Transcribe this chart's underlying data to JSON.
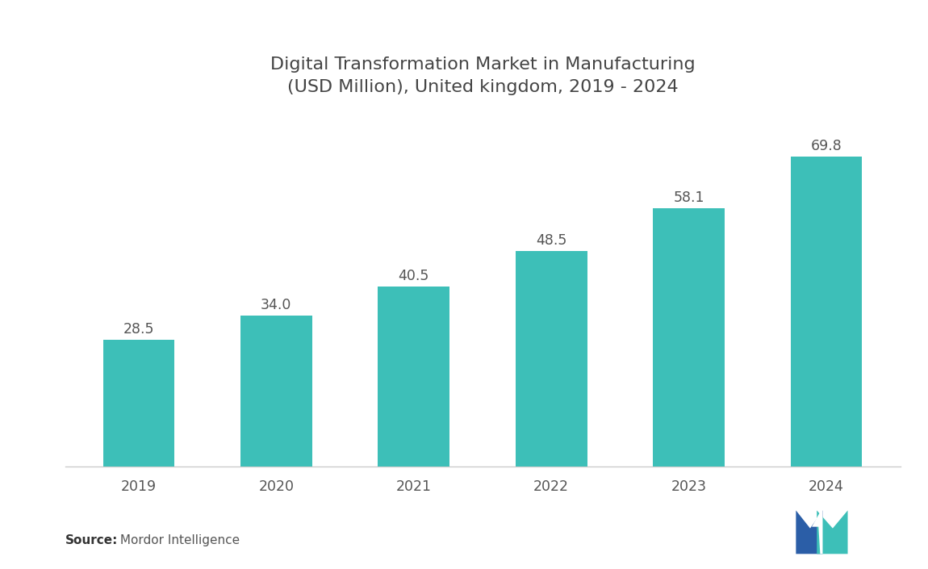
{
  "title": "Digital Transformation Market in Manufacturing\n(USD Million), United kingdom, 2019 - 2024",
  "categories": [
    "2019",
    "2020",
    "2021",
    "2022",
    "2023",
    "2024"
  ],
  "values": [
    28.5,
    34.0,
    40.5,
    48.5,
    58.1,
    69.8
  ],
  "bar_color": "#3DBFB8",
  "label_color": "#555555",
  "title_color": "#444444",
  "background_color": "#ffffff",
  "source_bold": "Source:",
  "source_normal": " Mordor Intelligence",
  "title_fontsize": 16,
  "label_fontsize": 12.5,
  "tick_fontsize": 12.5,
  "source_fontsize": 11,
  "bar_width": 0.52,
  "ylim": [
    0,
    82
  ],
  "logo_dark_blue": "#2B5EA7",
  "logo_teal": "#3DBFB8"
}
